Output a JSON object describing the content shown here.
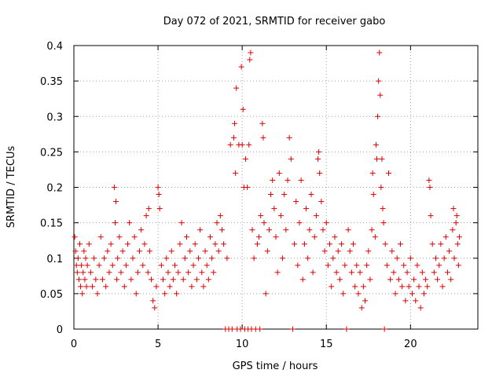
{
  "chart_data": {
    "type": "scatter",
    "title": "Day 072 of 2021, SRMTID for receiver gabo",
    "xlabel": "GPS time / hours",
    "ylabel": "SRMTID / TECUs",
    "xlim": [
      0,
      24
    ],
    "ylim": [
      0,
      0.4
    ],
    "x_ticks": [
      0,
      5,
      10,
      15,
      20
    ],
    "y_ticks": [
      0,
      0.05,
      0.1,
      0.15,
      0.2,
      0.25,
      0.3,
      0.35,
      0.4
    ],
    "y_tick_labels": [
      "0",
      "0.05",
      "0.1",
      "0.15",
      "0.2",
      "0.25",
      "0.3",
      "0.35",
      "0.4"
    ],
    "grid": true,
    "marker": "+",
    "color": "#e00000",
    "series": [
      {
        "name": "SRMTID",
        "points": [
          [
            0.05,
            0.13
          ],
          [
            0.1,
            0.11
          ],
          [
            0.15,
            0.09
          ],
          [
            0.2,
            0.08
          ],
          [
            0.25,
            0.1
          ],
          [
            0.3,
            0.07
          ],
          [
            0.35,
            0.12
          ],
          [
            0.4,
            0.06
          ],
          [
            0.45,
            0.09
          ],
          [
            0.5,
            0.05
          ],
          [
            0.55,
            0.08
          ],
          [
            0.6,
            0.11
          ],
          [
            0.65,
            0.07
          ],
          [
            0.7,
            0.1
          ],
          [
            0.75,
            0.06
          ],
          [
            0.8,
            0.09
          ],
          [
            0.9,
            0.12
          ],
          [
            1.0,
            0.08
          ],
          [
            1.1,
            0.06
          ],
          [
            1.2,
            0.1
          ],
          [
            1.3,
            0.07
          ],
          [
            1.4,
            0.05
          ],
          [
            1.5,
            0.09
          ],
          [
            1.6,
            0.13
          ],
          [
            1.7,
            0.07
          ],
          [
            1.8,
            0.1
          ],
          [
            1.9,
            0.06
          ],
          [
            2.0,
            0.11
          ],
          [
            2.1,
            0.08
          ],
          [
            2.2,
            0.12
          ],
          [
            2.3,
            0.09
          ],
          [
            2.4,
            0.2
          ],
          [
            2.45,
            0.15
          ],
          [
            2.5,
            0.18
          ],
          [
            2.55,
            0.07
          ],
          [
            2.6,
            0.1
          ],
          [
            2.7,
            0.13
          ],
          [
            2.8,
            0.08
          ],
          [
            2.9,
            0.11
          ],
          [
            3.0,
            0.06
          ],
          [
            3.1,
            0.09
          ],
          [
            3.2,
            0.12
          ],
          [
            3.3,
            0.15
          ],
          [
            3.4,
            0.07
          ],
          [
            3.5,
            0.1
          ],
          [
            3.6,
            0.13
          ],
          [
            3.7,
            0.05
          ],
          [
            3.8,
            0.08
          ],
          [
            3.9,
            0.11
          ],
          [
            4.0,
            0.14
          ],
          [
            4.1,
            0.09
          ],
          [
            4.2,
            0.12
          ],
          [
            4.3,
            0.16
          ],
          [
            4.4,
            0.08
          ],
          [
            4.45,
            0.17
          ],
          [
            4.5,
            0.11
          ],
          [
            4.6,
            0.07
          ],
          [
            4.7,
            0.04
          ],
          [
            4.8,
            0.03
          ],
          [
            4.9,
            0.06
          ],
          [
            5.0,
            0.2
          ],
          [
            5.05,
            0.19
          ],
          [
            5.1,
            0.17
          ],
          [
            5.2,
            0.09
          ],
          [
            5.3,
            0.07
          ],
          [
            5.4,
            0.05
          ],
          [
            5.5,
            0.1
          ],
          [
            5.6,
            0.08
          ],
          [
            5.7,
            0.06
          ],
          [
            5.8,
            0.11
          ],
          [
            5.9,
            0.07
          ],
          [
            6.0,
            0.09
          ],
          [
            6.1,
            0.05
          ],
          [
            6.2,
            0.08
          ],
          [
            6.3,
            0.12
          ],
          [
            6.4,
            0.15
          ],
          [
            6.5,
            0.07
          ],
          [
            6.6,
            0.1
          ],
          [
            6.7,
            0.13
          ],
          [
            6.8,
            0.08
          ],
          [
            6.9,
            0.11
          ],
          [
            7.0,
            0.06
          ],
          [
            7.1,
            0.09
          ],
          [
            7.2,
            0.12
          ],
          [
            7.3,
            0.07
          ],
          [
            7.4,
            0.1
          ],
          [
            7.5,
            0.14
          ],
          [
            7.6,
            0.08
          ],
          [
            7.7,
            0.06
          ],
          [
            7.8,
            0.11
          ],
          [
            7.9,
            0.09
          ],
          [
            8.0,
            0.07
          ],
          [
            8.1,
            0.13
          ],
          [
            8.2,
            0.1
          ],
          [
            8.3,
            0.08
          ],
          [
            8.4,
            0.12
          ],
          [
            8.5,
            0.15
          ],
          [
            8.6,
            0.11
          ],
          [
            8.7,
            0.16
          ],
          [
            8.8,
            0.14
          ],
          [
            8.9,
            0.12
          ],
          [
            9.0,
            0.0
          ],
          [
            9.1,
            0.1
          ],
          [
            9.2,
            0.0
          ],
          [
            9.3,
            0.26
          ],
          [
            9.4,
            0.0
          ],
          [
            9.5,
            0.27
          ],
          [
            9.55,
            0.29
          ],
          [
            9.6,
            0.22
          ],
          [
            9.65,
            0.34
          ],
          [
            9.7,
            0.0
          ],
          [
            9.8,
            0.26
          ],
          [
            9.9,
            0.0
          ],
          [
            9.95,
            0.37
          ],
          [
            10.0,
            0.26
          ],
          [
            10.05,
            0.31
          ],
          [
            10.1,
            0.2
          ],
          [
            10.15,
            0.0
          ],
          [
            10.2,
            0.24
          ],
          [
            10.3,
            0.2
          ],
          [
            10.35,
            0.0
          ],
          [
            10.4,
            0.26
          ],
          [
            10.45,
            0.38
          ],
          [
            10.5,
            0.39
          ],
          [
            10.55,
            0.0
          ],
          [
            10.6,
            0.14
          ],
          [
            10.7,
            0.1
          ],
          [
            10.8,
            0.0
          ],
          [
            10.9,
            0.12
          ],
          [
            11.0,
            0.13
          ],
          [
            11.05,
            0.0
          ],
          [
            11.1,
            0.16
          ],
          [
            11.2,
            0.29
          ],
          [
            11.25,
            0.27
          ],
          [
            11.3,
            0.15
          ],
          [
            11.4,
            0.05
          ],
          [
            11.5,
            0.11
          ],
          [
            11.6,
            0.14
          ],
          [
            11.7,
            0.19
          ],
          [
            11.8,
            0.21
          ],
          [
            11.9,
            0.17
          ],
          [
            12.0,
            0.13
          ],
          [
            12.1,
            0.08
          ],
          [
            12.2,
            0.22
          ],
          [
            12.3,
            0.16
          ],
          [
            12.4,
            0.1
          ],
          [
            12.5,
            0.19
          ],
          [
            12.6,
            0.14
          ],
          [
            12.7,
            0.21
          ],
          [
            12.8,
            0.27
          ],
          [
            12.9,
            0.24
          ],
          [
            13.0,
            0.0
          ],
          [
            13.1,
            0.12
          ],
          [
            13.2,
            0.18
          ],
          [
            13.3,
            0.09
          ],
          [
            13.4,
            0.15
          ],
          [
            13.5,
            0.21
          ],
          [
            13.6,
            0.07
          ],
          [
            13.7,
            0.12
          ],
          [
            13.8,
            0.17
          ],
          [
            13.9,
            0.1
          ],
          [
            14.0,
            0.14
          ],
          [
            14.1,
            0.19
          ],
          [
            14.2,
            0.08
          ],
          [
            14.3,
            0.13
          ],
          [
            14.4,
            0.16
          ],
          [
            14.5,
            0.24
          ],
          [
            14.55,
            0.25
          ],
          [
            14.6,
            0.22
          ],
          [
            14.7,
            0.18
          ],
          [
            14.8,
            0.14
          ],
          [
            14.9,
            0.11
          ],
          [
            15.0,
            0.15
          ],
          [
            15.1,
            0.09
          ],
          [
            15.2,
            0.12
          ],
          [
            15.3,
            0.06
          ],
          [
            15.4,
            0.1
          ],
          [
            15.5,
            0.13
          ],
          [
            15.6,
            0.08
          ],
          [
            15.7,
            0.11
          ],
          [
            15.8,
            0.07
          ],
          [
            15.9,
            0.12
          ],
          [
            16.0,
            0.05
          ],
          [
            16.1,
            0.09
          ],
          [
            16.2,
            0.0
          ],
          [
            16.3,
            0.14
          ],
          [
            16.4,
            0.11
          ],
          [
            16.5,
            0.08
          ],
          [
            16.6,
            0.12
          ],
          [
            16.7,
            0.06
          ],
          [
            16.8,
            0.09
          ],
          [
            16.9,
            0.05
          ],
          [
            17.0,
            0.08
          ],
          [
            17.1,
            0.03
          ],
          [
            17.2,
            0.06
          ],
          [
            17.3,
            0.04
          ],
          [
            17.4,
            0.09
          ],
          [
            17.5,
            0.11
          ],
          [
            17.6,
            0.07
          ],
          [
            17.7,
            0.14
          ],
          [
            17.75,
            0.22
          ],
          [
            17.8,
            0.19
          ],
          [
            17.9,
            0.13
          ],
          [
            17.95,
            0.26
          ],
          [
            18.0,
            0.24
          ],
          [
            18.05,
            0.3
          ],
          [
            18.1,
            0.35
          ],
          [
            18.15,
            0.39
          ],
          [
            18.2,
            0.33
          ],
          [
            18.25,
            0.2
          ],
          [
            18.3,
            0.24
          ],
          [
            18.35,
            0.17
          ],
          [
            18.4,
            0.15
          ],
          [
            18.45,
            0.0
          ],
          [
            18.5,
            0.12
          ],
          [
            18.6,
            0.09
          ],
          [
            18.7,
            0.22
          ],
          [
            18.8,
            0.07
          ],
          [
            18.9,
            0.11
          ],
          [
            19.0,
            0.08
          ],
          [
            19.1,
            0.05
          ],
          [
            19.2,
            0.1
          ],
          [
            19.3,
            0.07
          ],
          [
            19.4,
            0.12
          ],
          [
            19.5,
            0.06
          ],
          [
            19.6,
            0.09
          ],
          [
            19.7,
            0.04
          ],
          [
            19.8,
            0.08
          ],
          [
            19.9,
            0.06
          ],
          [
            20.0,
            0.1
          ],
          [
            20.1,
            0.05
          ],
          [
            20.2,
            0.07
          ],
          [
            20.3,
            0.04
          ],
          [
            20.4,
            0.09
          ],
          [
            20.5,
            0.06
          ],
          [
            20.6,
            0.03
          ],
          [
            20.7,
            0.08
          ],
          [
            20.8,
            0.05
          ],
          [
            20.9,
            0.07
          ],
          [
            21.0,
            0.06
          ],
          [
            21.1,
            0.21
          ],
          [
            21.15,
            0.2
          ],
          [
            21.2,
            0.16
          ],
          [
            21.3,
            0.12
          ],
          [
            21.4,
            0.08
          ],
          [
            21.5,
            0.1
          ],
          [
            21.6,
            0.07
          ],
          [
            21.7,
            0.09
          ],
          [
            21.8,
            0.12
          ],
          [
            21.9,
            0.06
          ],
          [
            22.0,
            0.1
          ],
          [
            22.1,
            0.13
          ],
          [
            22.2,
            0.08
          ],
          [
            22.3,
            0.11
          ],
          [
            22.4,
            0.07
          ],
          [
            22.5,
            0.14
          ],
          [
            22.55,
            0.17
          ],
          [
            22.6,
            0.1
          ],
          [
            22.7,
            0.15
          ],
          [
            22.75,
            0.16
          ],
          [
            22.8,
            0.12
          ],
          [
            22.85,
            0.09
          ],
          [
            22.9,
            0.13
          ]
        ]
      }
    ]
  }
}
